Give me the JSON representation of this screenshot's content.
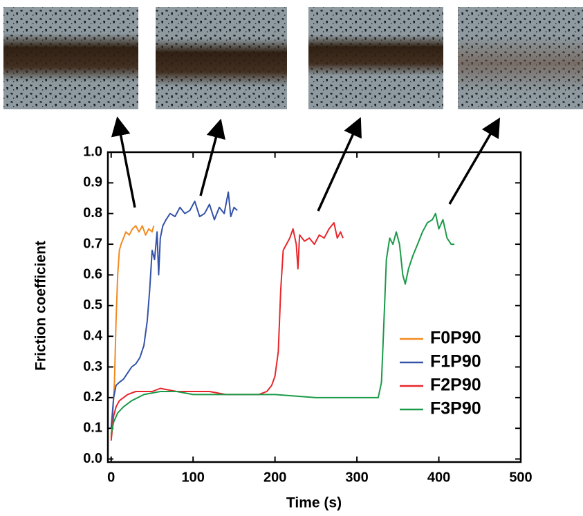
{
  "chart_data": {
    "type": "line",
    "xlabel": "Time (s)",
    "ylabel": "Friction coefficient",
    "xlim": [
      -4,
      500
    ],
    "ylim": [
      -0.01,
      1.0
    ],
    "xticks": [
      0,
      100,
      200,
      300,
      400,
      500
    ],
    "yticks": [
      {
        "value": 0,
        "label": "0.0"
      },
      0.1,
      0.2,
      0.3,
      0.4,
      0.5,
      0.6,
      0.7,
      0.8,
      0.9,
      {
        "value": 1,
        "label": "1.0"
      }
    ],
    "legend": "right",
    "series": [
      {
        "name": "F0P90",
        "color": "#f28a1f",
        "x": [
          0,
          2,
          4,
          6,
          8,
          10,
          12,
          15,
          18,
          22,
          26,
          30,
          34,
          38,
          42,
          46,
          50,
          52
        ],
        "values": [
          0.07,
          0.15,
          0.25,
          0.45,
          0.6,
          0.68,
          0.7,
          0.72,
          0.74,
          0.73,
          0.75,
          0.76,
          0.74,
          0.76,
          0.73,
          0.75,
          0.74,
          0.76
        ]
      },
      {
        "name": "F1P90",
        "color": "#3352a8",
        "x": [
          0,
          3,
          6,
          10,
          15,
          20,
          25,
          30,
          35,
          40,
          44,
          47,
          50,
          53,
          56,
          58,
          60,
          63,
          67,
          72,
          78,
          84,
          90,
          96,
          102,
          108,
          114,
          120,
          126,
          132,
          138,
          143,
          146,
          150,
          154
        ],
        "values": [
          0.1,
          0.2,
          0.24,
          0.25,
          0.26,
          0.28,
          0.3,
          0.31,
          0.33,
          0.37,
          0.45,
          0.55,
          0.68,
          0.65,
          0.74,
          0.6,
          0.72,
          0.76,
          0.78,
          0.8,
          0.79,
          0.82,
          0.8,
          0.81,
          0.84,
          0.79,
          0.8,
          0.83,
          0.78,
          0.82,
          0.8,
          0.87,
          0.79,
          0.82,
          0.81
        ]
      },
      {
        "name": "F2P90",
        "color": "#e8262b",
        "x": [
          0,
          3,
          6,
          10,
          15,
          20,
          30,
          40,
          50,
          60,
          80,
          100,
          120,
          140,
          160,
          180,
          190,
          196,
          200,
          204,
          207,
          210,
          214,
          218,
          222,
          226,
          228,
          230,
          236,
          242,
          248,
          254,
          260,
          266,
          272,
          276,
          280,
          283
        ],
        "values": [
          0.06,
          0.14,
          0.17,
          0.19,
          0.2,
          0.21,
          0.22,
          0.22,
          0.22,
          0.23,
          0.22,
          0.22,
          0.22,
          0.21,
          0.21,
          0.21,
          0.22,
          0.24,
          0.27,
          0.35,
          0.55,
          0.68,
          0.7,
          0.72,
          0.75,
          0.7,
          0.62,
          0.73,
          0.71,
          0.72,
          0.7,
          0.73,
          0.72,
          0.75,
          0.77,
          0.72,
          0.74,
          0.72
        ]
      },
      {
        "name": "F3P90",
        "color": "#1a9a48",
        "x": [
          0,
          3,
          8,
          15,
          25,
          40,
          60,
          80,
          100,
          150,
          200,
          250,
          300,
          320,
          326,
          330,
          333,
          336,
          340,
          344,
          348,
          352,
          356,
          359,
          363,
          368,
          374,
          380,
          386,
          392,
          396,
          400,
          405,
          410,
          415,
          419
        ],
        "values": [
          0.08,
          0.12,
          0.15,
          0.17,
          0.19,
          0.21,
          0.22,
          0.22,
          0.21,
          0.21,
          0.21,
          0.2,
          0.2,
          0.2,
          0.2,
          0.25,
          0.45,
          0.65,
          0.72,
          0.7,
          0.74,
          0.7,
          0.6,
          0.57,
          0.62,
          0.66,
          0.7,
          0.74,
          0.77,
          0.78,
          0.8,
          0.75,
          0.78,
          0.72,
          0.7,
          0.7
        ]
      }
    ]
  }
}
